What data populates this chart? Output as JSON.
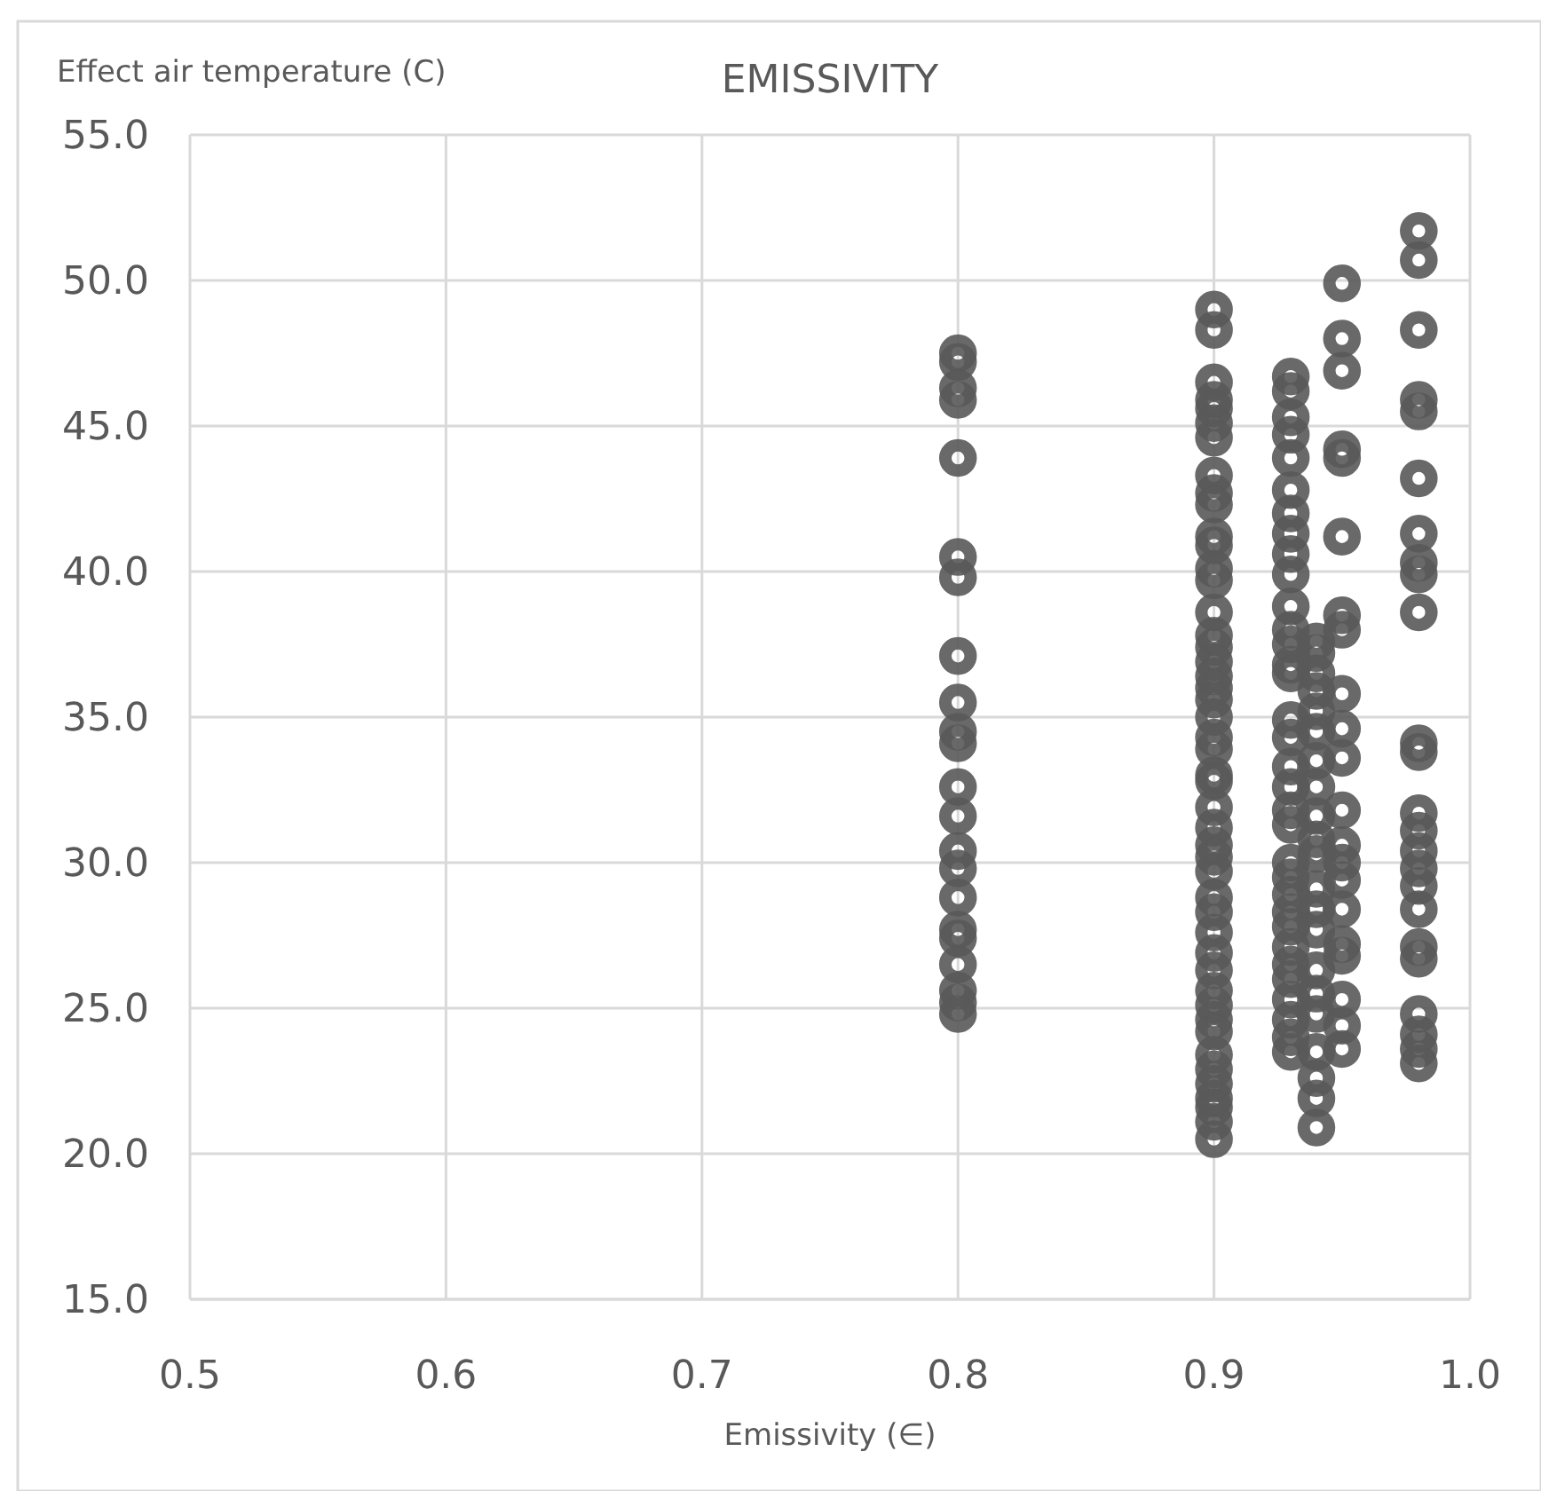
{
  "chart_data": {
    "type": "scatter",
    "title": "EMISSIVITY",
    "xlabel": "Emissivity (∈)",
    "ylabel": "Effect air temperature (C)",
    "xlim": [
      0.5,
      1.0
    ],
    "xticks": [
      {
        "value": 0.5,
        "label": "0.5"
      },
      {
        "value": 0.6,
        "label": "0.6"
      },
      {
        "value": 0.7,
        "label": "0.7"
      },
      {
        "value": 0.8,
        "label": "0.8"
      },
      {
        "value": 0.9,
        "label": "0.9"
      },
      {
        "value": 1.0,
        "label": "1.0"
      }
    ],
    "ylim": [
      15,
      55
    ],
    "yticks": [
      {
        "value": 15,
        "label": "15.0"
      },
      {
        "value": 20,
        "label": "20.0"
      },
      {
        "value": 25,
        "label": "25.0"
      },
      {
        "value": 30,
        "label": "30.0"
      },
      {
        "value": 35,
        "label": "35.0"
      },
      {
        "value": 40,
        "label": "40.0"
      },
      {
        "value": 45,
        "label": "45.0"
      },
      {
        "value": 50,
        "label": "50.0"
      },
      {
        "value": 55,
        "label": "55.0"
      }
    ],
    "grid": true,
    "marker": "circle",
    "series": [
      {
        "color": "#595959",
        "x": [
          0.8,
          0.8,
          0.8,
          0.8,
          0.8,
          0.8,
          0.8,
          0.8,
          0.8,
          0.8,
          0.8,
          0.8,
          0.8,
          0.8,
          0.8,
          0.8,
          0.8,
          0.8,
          0.8,
          0.8,
          0.8,
          0.8
        ],
        "values": [
          47.5,
          47.2,
          46.3,
          45.9,
          43.9,
          40.5,
          39.8,
          37.1,
          35.5,
          34.5,
          34.1,
          32.6,
          31.6,
          30.4,
          29.8,
          28.8,
          27.7,
          27.4,
          26.5,
          25.6,
          25.2,
          24.8
        ]
      },
      {
        "color": "#595959",
        "x": [
          0.9,
          0.9,
          0.9,
          0.9,
          0.9,
          0.9,
          0.9,
          0.9,
          0.9,
          0.9,
          0.9,
          0.9,
          0.9,
          0.9,
          0.9,
          0.9,
          0.9,
          0.9,
          0.9,
          0.9,
          0.9,
          0.9,
          0.9,
          0.9,
          0.9,
          0.9,
          0.9,
          0.9,
          0.9,
          0.9,
          0.9,
          0.9,
          0.9,
          0.9,
          0.9,
          0.9,
          0.9,
          0.9,
          0.9,
          0.9,
          0.9,
          0.9,
          0.9,
          0.9,
          0.9,
          0.9,
          0.9
        ],
        "values": [
          49.0,
          48.3,
          46.5,
          45.9,
          45.6,
          45.1,
          44.6,
          43.3,
          42.7,
          42.3,
          41.2,
          40.9,
          40.1,
          39.7,
          38.6,
          37.8,
          37.4,
          36.9,
          36.4,
          36.0,
          35.6,
          35.0,
          34.3,
          33.9,
          33.0,
          32.8,
          31.9,
          31.2,
          30.6,
          30.2,
          29.7,
          28.8,
          28.3,
          27.6,
          26.9,
          26.3,
          25.6,
          25.1,
          24.6,
          24.2,
          23.4,
          22.9,
          22.4,
          21.9,
          21.6,
          21.1,
          20.5
        ]
      },
      {
        "color": "#595959",
        "x": [
          0.93,
          0.93,
          0.93,
          0.93,
          0.93,
          0.93,
          0.93,
          0.93,
          0.93,
          0.93,
          0.93,
          0.93,
          0.93,
          0.93,
          0.93,
          0.93,
          0.93,
          0.93,
          0.93,
          0.93,
          0.93,
          0.93,
          0.93,
          0.93,
          0.93,
          0.93,
          0.93,
          0.93,
          0.93,
          0.93,
          0.93,
          0.93,
          0.93
        ],
        "values": [
          46.7,
          46.2,
          45.3,
          44.7,
          43.9,
          42.8,
          42.0,
          41.3,
          40.6,
          39.9,
          38.8,
          38.0,
          37.5,
          36.8,
          36.5,
          34.9,
          34.3,
          33.3,
          32.6,
          31.8,
          31.3,
          30.0,
          29.5,
          28.9,
          28.3,
          27.8,
          27.1,
          26.5,
          26.0,
          25.3,
          24.6,
          24.0,
          23.5
        ]
      },
      {
        "color": "#595959",
        "x": [
          0.94,
          0.94,
          0.94,
          0.94,
          0.94,
          0.94,
          0.94,
          0.94,
          0.94,
          0.94,
          0.94,
          0.94,
          0.94,
          0.94,
          0.94,
          0.94,
          0.94,
          0.94,
          0.94,
          0.94,
          0.94
        ],
        "values": [
          37.6,
          37.2,
          36.5,
          35.9,
          35.2,
          34.5,
          33.5,
          32.6,
          31.6,
          30.8,
          30.3,
          29.1,
          28.4,
          27.7,
          26.3,
          25.5,
          24.8,
          23.5,
          22.6,
          21.9,
          20.9
        ]
      },
      {
        "color": "#595959",
        "x": [
          0.95,
          0.95,
          0.95,
          0.95,
          0.95,
          0.95,
          0.95,
          0.95,
          0.95,
          0.95,
          0.95,
          0.95,
          0.95,
          0.95,
          0.95,
          0.95,
          0.95,
          0.95,
          0.95,
          0.95,
          0.95
        ],
        "values": [
          49.9,
          48.0,
          46.9,
          44.2,
          43.9,
          41.2,
          38.5,
          38.0,
          35.8,
          34.6,
          33.6,
          31.8,
          30.6,
          30.0,
          29.4,
          28.4,
          27.2,
          26.8,
          25.3,
          24.4,
          23.6
        ]
      },
      {
        "color": "#595959",
        "x": [
          0.98,
          0.98,
          0.98,
          0.98,
          0.98,
          0.98,
          0.98,
          0.98,
          0.98,
          0.98,
          0.98,
          0.98,
          0.98,
          0.98,
          0.98,
          0.98,
          0.98,
          0.98,
          0.98,
          0.98,
          0.98,
          0.98,
          0.98,
          0.98
        ],
        "values": [
          51.7,
          50.7,
          48.3,
          45.9,
          45.5,
          43.2,
          41.3,
          40.3,
          39.9,
          38.6,
          34.1,
          33.8,
          31.7,
          31.1,
          30.4,
          29.8,
          29.2,
          28.4,
          27.1,
          26.7,
          24.8,
          24.1,
          23.6,
          23.1
        ]
      }
    ]
  }
}
